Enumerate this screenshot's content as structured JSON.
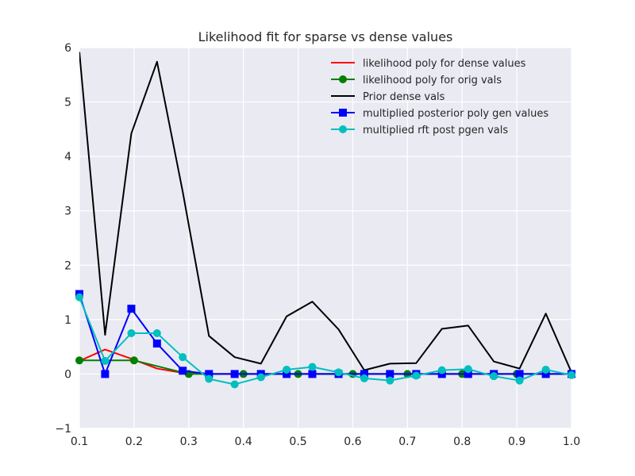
{
  "chart_data": {
    "type": "line",
    "title": "Likelihood fit for sparse vs dense values",
    "xlabel": "",
    "ylabel": "",
    "xlim": [
      0.1,
      1.0
    ],
    "ylim": [
      -1,
      6
    ],
    "xticks": [
      0.1,
      0.2,
      0.3,
      0.4,
      0.5,
      0.6,
      0.7,
      0.8,
      0.9,
      1.0
    ],
    "yticks": [
      -1,
      0,
      1,
      2,
      3,
      4,
      5,
      6
    ],
    "xtick_labels": [
      "0.1",
      "0.2",
      "0.3",
      "0.4",
      "0.5",
      "0.6",
      "0.7",
      "0.8",
      "0.9",
      "1.0"
    ],
    "ytick_labels": [
      "−1",
      "0",
      "1",
      "2",
      "3",
      "4",
      "5",
      "6"
    ],
    "grid": true,
    "legend_position": "top-right",
    "background": "#eaeaf2",
    "series": [
      {
        "name": "likelihood poly for dense values",
        "color": "#ff0000",
        "marker": "none",
        "x": [
          0.1,
          0.147,
          0.195,
          0.242,
          0.289,
          0.337,
          0.384,
          0.432,
          0.479,
          0.526,
          0.574,
          0.621,
          0.668,
          0.716,
          0.763,
          0.811,
          0.858,
          0.905,
          0.953,
          1.0
        ],
        "y": [
          0.24,
          0.45,
          0.28,
          0.1,
          0.02,
          0.0,
          0.0,
          0.0,
          0.0,
          0.0,
          0.0,
          0.0,
          0.0,
          0.0,
          0.0,
          0.0,
          0.0,
          0.0,
          0.0,
          0.0
        ]
      },
      {
        "name": "likelihood poly for orig vals",
        "color": "#008000",
        "marker": "circle",
        "x": [
          0.1,
          0.2,
          0.3,
          0.4,
          0.5,
          0.6,
          0.7,
          0.8,
          0.9,
          1.0
        ],
        "y": [
          0.25,
          0.25,
          0.0,
          0.0,
          0.0,
          0.0,
          0.0,
          0.0,
          0.0,
          0.0
        ]
      },
      {
        "name": "Prior dense vals",
        "color": "#000000",
        "marker": "none",
        "x": [
          0.1,
          0.147,
          0.195,
          0.242,
          0.289,
          0.337,
          0.384,
          0.432,
          0.479,
          0.526,
          0.574,
          0.621,
          0.668,
          0.716,
          0.763,
          0.811,
          0.858,
          0.905,
          0.953,
          1.0
        ],
        "y": [
          5.92,
          0.72,
          4.42,
          5.74,
          3.35,
          0.7,
          0.31,
          0.19,
          1.06,
          1.33,
          0.82,
          0.07,
          0.19,
          0.2,
          0.83,
          0.89,
          0.23,
          0.1,
          1.11,
          0.03
        ]
      },
      {
        "name": "multiplied posterior poly gen values",
        "color": "#0000ff",
        "marker": "square",
        "x": [
          0.1,
          0.147,
          0.195,
          0.242,
          0.289,
          0.337,
          0.384,
          0.432,
          0.479,
          0.526,
          0.574,
          0.621,
          0.668,
          0.716,
          0.763,
          0.811,
          0.858,
          0.905,
          0.953,
          1.0
        ],
        "y": [
          1.47,
          0.0,
          1.2,
          0.56,
          0.06,
          0.0,
          0.0,
          0.0,
          0.0,
          0.0,
          0.0,
          0.0,
          0.0,
          0.0,
          0.0,
          0.0,
          0.0,
          0.0,
          0.0,
          0.0
        ]
      },
      {
        "name": "multiplied rft post pgen vals",
        "color": "#00bfbf",
        "marker": "circle",
        "x": [
          0.1,
          0.147,
          0.195,
          0.242,
          0.289,
          0.337,
          0.384,
          0.432,
          0.479,
          0.526,
          0.574,
          0.621,
          0.668,
          0.716,
          0.763,
          0.811,
          0.858,
          0.905,
          0.953,
          1.0
        ],
        "y": [
          1.41,
          0.24,
          0.75,
          0.75,
          0.31,
          -0.09,
          -0.19,
          -0.06,
          0.08,
          0.13,
          0.03,
          -0.08,
          -0.12,
          -0.03,
          0.07,
          0.09,
          -0.04,
          -0.12,
          0.08,
          -0.02
        ]
      }
    ]
  }
}
